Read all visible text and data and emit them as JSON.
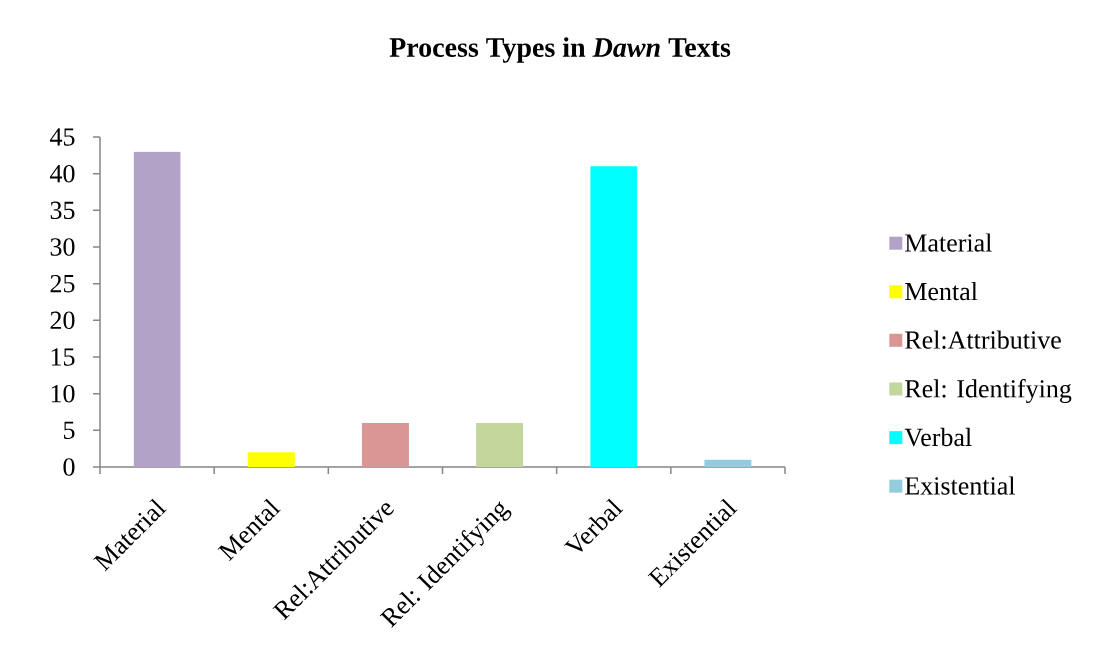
{
  "chart_data": {
    "type": "bar",
    "title": "Process Types in *Dawn* Texts",
    "categories": [
      "Material",
      "Mental",
      "Rel:Attributive",
      "Rel: Identifying",
      "Verbal",
      "Existential"
    ],
    "series": [
      {
        "name": "Material",
        "color": "#b3a2c7",
        "values": [
          43,
          null,
          null,
          null,
          null,
          null
        ]
      },
      {
        "name": "Mental",
        "color": "#ffff00",
        "values": [
          null,
          2,
          null,
          null,
          null,
          null
        ]
      },
      {
        "name": "Rel:Attributive",
        "color": "#d99694",
        "values": [
          null,
          null,
          6,
          null,
          null,
          null
        ]
      },
      {
        "name": "Rel: Identifying",
        "color": "#c3d69b",
        "values": [
          null,
          null,
          null,
          6,
          null,
          null
        ]
      },
      {
        "name": "Verbal",
        "color": "#00ffff",
        "values": [
          null,
          null,
          null,
          null,
          41,
          null
        ]
      },
      {
        "name": "Existential",
        "color": "#93cddd",
        "values": [
          null,
          null,
          null,
          null,
          null,
          1
        ]
      }
    ],
    "ylim": [
      0,
      45
    ],
    "yticks": [
      0,
      5,
      10,
      15,
      20,
      25,
      30,
      35,
      40,
      45
    ],
    "legend": "right"
  }
}
